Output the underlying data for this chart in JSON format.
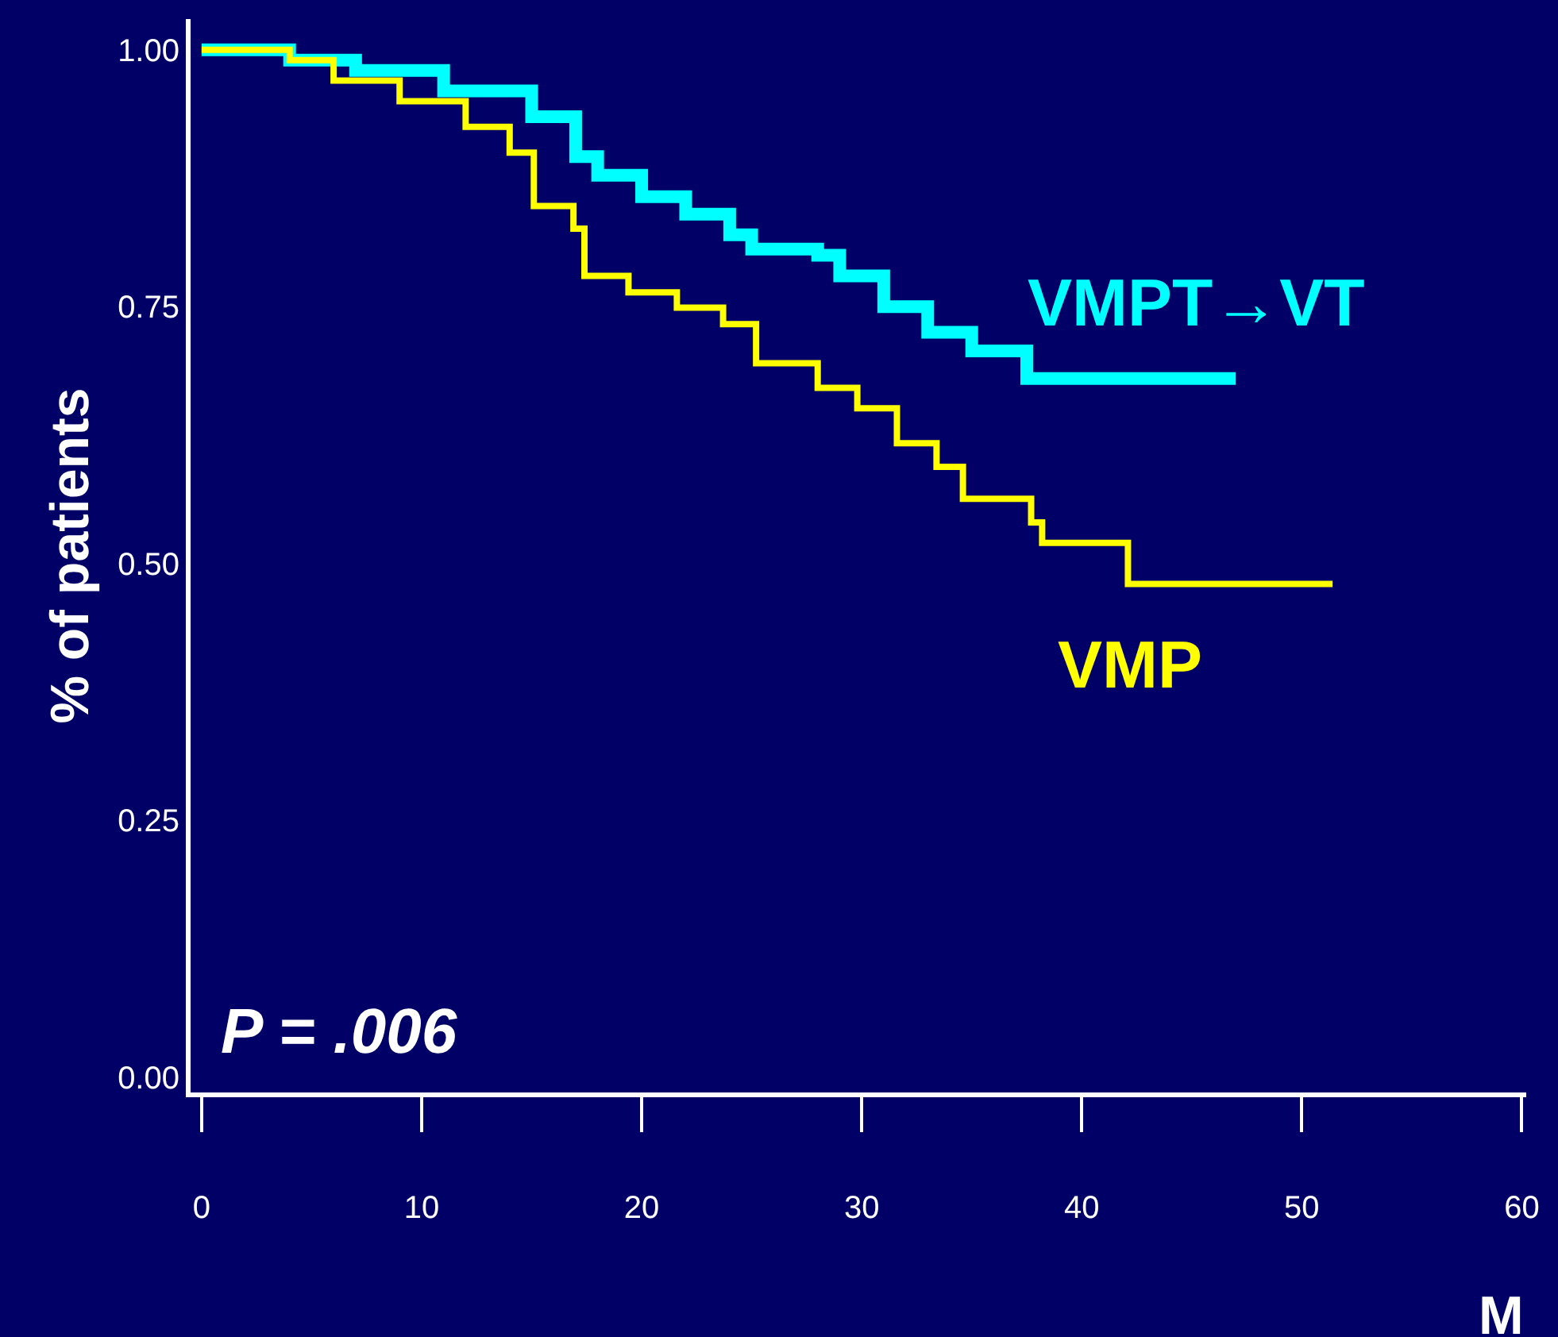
{
  "chart_data": {
    "type": "step",
    "ylabel": "% of patients",
    "xlabel": "M",
    "series": [
      {
        "name": "VMPT→VT",
        "color": "#00ffff",
        "x": [
          0,
          4,
          7,
          11,
          15,
          17,
          18,
          20,
          22,
          24,
          25,
          28,
          29,
          31,
          33,
          35,
          37.5,
          47
        ],
        "values": [
          1.0,
          0.99,
          0.98,
          0.96,
          0.935,
          0.896,
          0.878,
          0.857,
          0.84,
          0.82,
          0.806,
          0.8,
          0.78,
          0.75,
          0.725,
          0.707,
          0.68,
          0.68
        ]
      },
      {
        "name": "VMP",
        "color": "#ffff00",
        "x": [
          0,
          4,
          6,
          9,
          12,
          14,
          15.1,
          16.9,
          17.4,
          19.4,
          21.6,
          23.7,
          25.2,
          28,
          29.8,
          31.6,
          33.4,
          34.6,
          37.7,
          38.2,
          42.1,
          51.4
        ],
        "values": [
          1.0,
          0.99,
          0.97,
          0.95,
          0.925,
          0.9,
          0.848,
          0.826,
          0.78,
          0.764,
          0.749,
          0.733,
          0.695,
          0.671,
          0.651,
          0.617,
          0.594,
          0.563,
          0.54,
          0.52,
          0.48,
          0.48
        ]
      }
    ],
    "xlim": [
      -0.5,
      60.2
    ],
    "xticks": [
      0,
      10,
      20,
      30,
      40,
      50,
      60
    ],
    "ylim": [
      -0.015,
      1.03
    ],
    "yticks": [
      {
        "value": 0,
        "label": "0.00"
      },
      {
        "value": 0.25,
        "label": "0.25"
      },
      {
        "value": 0.5,
        "label": "0.50"
      },
      {
        "value": 0.75,
        "label": "0.75"
      },
      {
        "value": 1,
        "label": "1.00"
      }
    ],
    "annotations": [
      "P = .006"
    ],
    "grid": false,
    "legend": false,
    "line_style": "solid",
    "marker": "none"
  }
}
